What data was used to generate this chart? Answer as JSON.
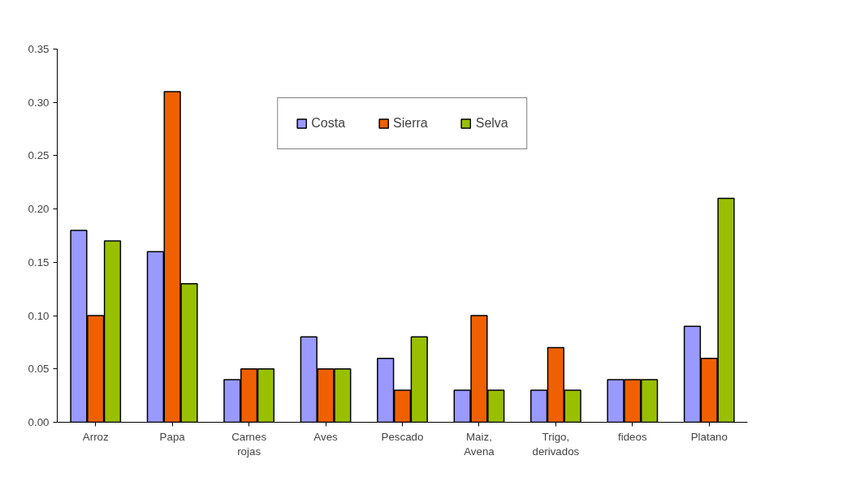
{
  "chart_data": {
    "type": "bar",
    "categories": [
      "Arroz",
      "Papa",
      "Carnes\nrojas",
      "Aves",
      "Pescado",
      "Maiz,\nAvena",
      "Trigo,\nderivados",
      "fideos",
      "Platano"
    ],
    "series": [
      {
        "name": "Costa",
        "color": "#9999ff",
        "values": [
          0.18,
          0.16,
          0.04,
          0.08,
          0.06,
          0.03,
          0.03,
          0.04,
          0.09
        ]
      },
      {
        "name": "Sierra",
        "color": "#f06000",
        "values": [
          0.1,
          0.31,
          0.05,
          0.05,
          0.03,
          0.1,
          0.07,
          0.04,
          0.06
        ]
      },
      {
        "name": "Selva",
        "color": "#99c000",
        "values": [
          0.17,
          0.13,
          0.05,
          0.05,
          0.08,
          0.03,
          0.03,
          0.04,
          0.21
        ]
      }
    ],
    "ylim": [
      0,
      0.35
    ],
    "yticks": [
      {
        "value": 0,
        "label": "0.00"
      },
      {
        "value": 0.05,
        "label": "0.05"
      },
      {
        "value": 0.1,
        "label": "0.10"
      },
      {
        "value": 0.15,
        "label": "0.15"
      },
      {
        "value": 0.2,
        "label": "0.20"
      },
      {
        "value": 0.25,
        "label": "0.25"
      },
      {
        "value": 0.3,
        "label": "0.30"
      },
      {
        "value": 0.35,
        "label": "0.35"
      }
    ],
    "grid": false,
    "legend": "top"
  }
}
